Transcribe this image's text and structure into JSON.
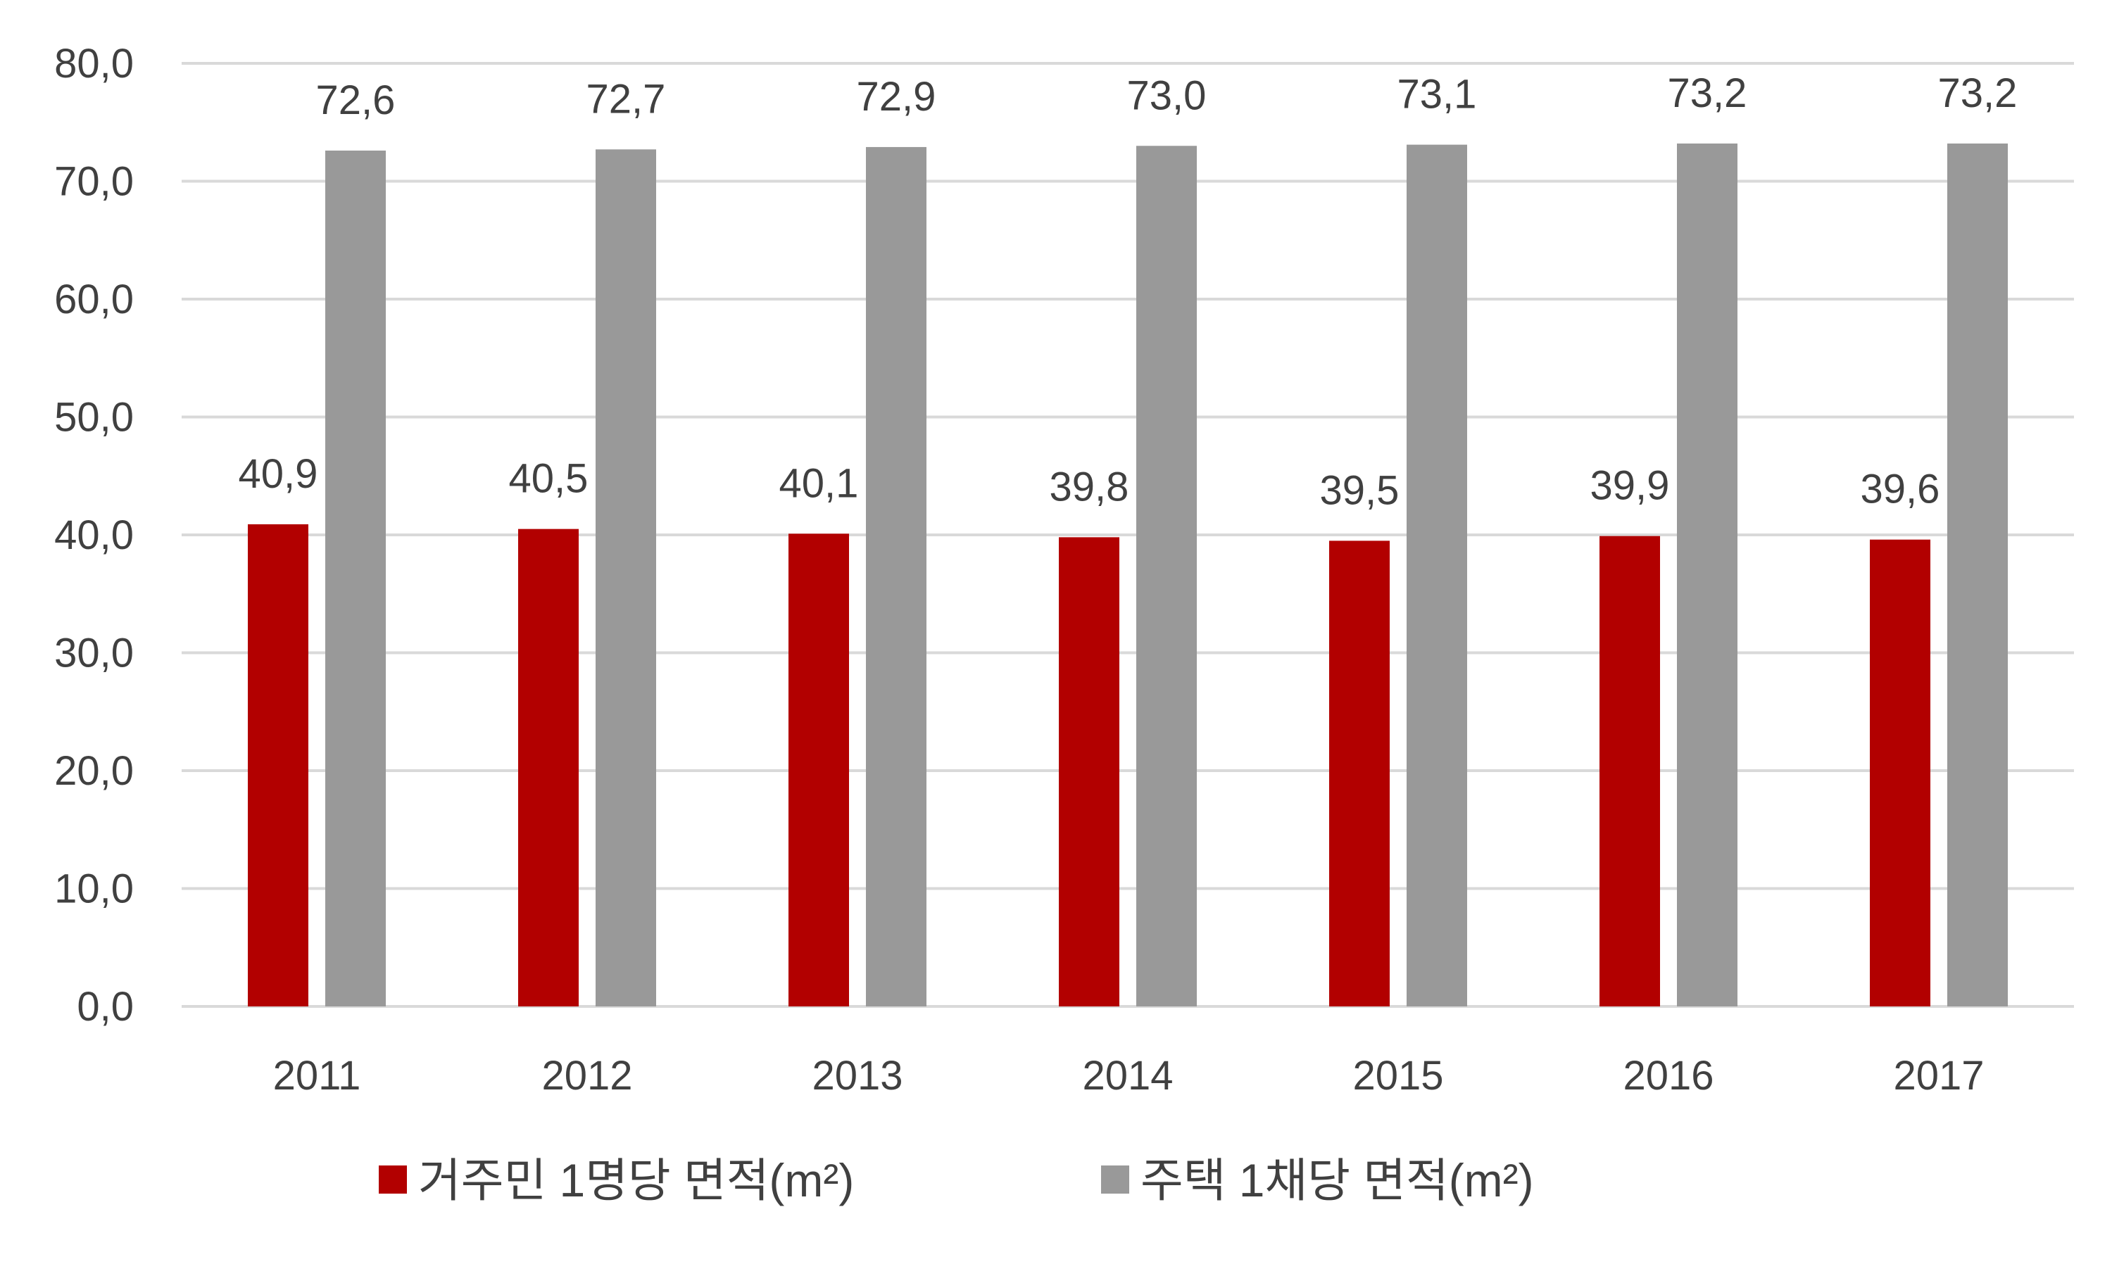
{
  "chart_data": {
    "type": "bar",
    "title": "",
    "xlabel": "",
    "ylabel": "",
    "categories": [
      "2011",
      "2012",
      "2013",
      "2014",
      "2015",
      "2016",
      "2017"
    ],
    "series": [
      {
        "name": "거주민 1명당 면적(m²)",
        "color": "#b20000",
        "values": [
          40.9,
          40.5,
          40.1,
          39.8,
          39.5,
          39.9,
          39.6
        ],
        "labels": [
          "40,9",
          "40,5",
          "40,1",
          "39,8",
          "39,5",
          "39,9",
          "39,6"
        ]
      },
      {
        "name": "주택 1채당 면적(m²)",
        "color": "#999999",
        "values": [
          72.6,
          72.7,
          72.9,
          73.0,
          73.1,
          73.2,
          73.2
        ],
        "labels": [
          "72,6",
          "72,7",
          "72,9",
          "73,0",
          "73,1",
          "73,2",
          "73,2"
        ]
      }
    ],
    "ylim": [
      0,
      80
    ],
    "yticks": [
      0,
      10,
      20,
      30,
      40,
      50,
      60,
      70,
      80
    ],
    "ytick_labels": [
      "0,0",
      "10,0",
      "20,0",
      "30,0",
      "40,0",
      "50,0",
      "60,0",
      "70,0",
      "80,0"
    ],
    "grid": true,
    "legend_position": "bottom",
    "gridline_color": "#d9d9d9",
    "text_color": "#404040"
  }
}
